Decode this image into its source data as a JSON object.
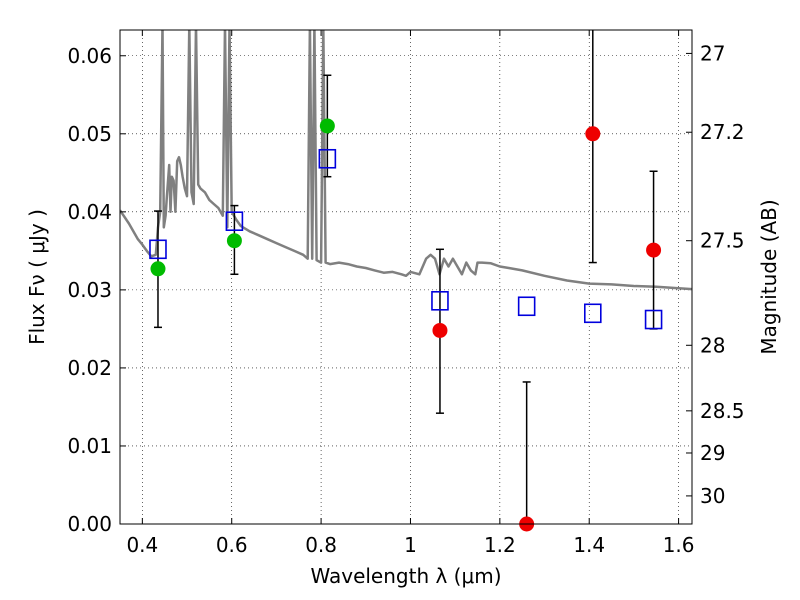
{
  "chart_data": {
    "type": "scatter",
    "title": "",
    "xlabel": "Wavelength  λ (μm)",
    "ylabel": "Flux  Fν  ( μJy )",
    "ylabel_right": "Magnitude (AB)",
    "xlim": [
      0.35,
      1.63
    ],
    "ylim": [
      0.0,
      0.0633
    ],
    "grid": true,
    "grid_style": "dotted",
    "x_ticks": [
      {
        "value": 0.4,
        "label": "0.4"
      },
      {
        "value": 0.6,
        "label": "0.6"
      },
      {
        "value": 0.8,
        "label": "0.8"
      },
      {
        "value": 1.0,
        "label": "1"
      },
      {
        "value": 1.2,
        "label": "1.2"
      },
      {
        "value": 1.4,
        "label": "1.4"
      },
      {
        "value": 1.6,
        "label": "1.6"
      }
    ],
    "y_ticks": [
      {
        "value": 0.0,
        "label": "0.00"
      },
      {
        "value": 0.01,
        "label": "0.01"
      },
      {
        "value": 0.02,
        "label": "0.02"
      },
      {
        "value": 0.03,
        "label": "0.03"
      },
      {
        "value": 0.04,
        "label": "0.04"
      },
      {
        "value": 0.05,
        "label": "0.05"
      },
      {
        "value": 0.06,
        "label": "0.06"
      }
    ],
    "right_ticks": [
      {
        "flux": 0.0603,
        "label": "27"
      },
      {
        "flux": 0.0502,
        "label": "27.2"
      },
      {
        "flux": 0.0363,
        "label": "27.5"
      },
      {
        "flux": 0.0229,
        "label": "28"
      },
      {
        "flux": 0.0145,
        "label": "28.5"
      },
      {
        "flux": 0.0091,
        "label": "29"
      },
      {
        "flux": 0.0036,
        "label": "30"
      }
    ],
    "model_spectrum": {
      "color": "#808080",
      "x": [
        0.35,
        0.37,
        0.39,
        0.4,
        0.41,
        0.42,
        0.43,
        0.435,
        0.44,
        0.445,
        0.448,
        0.452,
        0.455,
        0.46,
        0.463,
        0.466,
        0.47,
        0.474,
        0.478,
        0.482,
        0.486,
        0.49,
        0.495,
        0.5,
        0.505,
        0.51,
        0.515,
        0.52,
        0.525,
        0.53,
        0.54,
        0.55,
        0.56,
        0.57,
        0.58,
        0.585,
        0.59,
        0.595,
        0.6,
        0.61,
        0.62,
        0.64,
        0.66,
        0.68,
        0.7,
        0.72,
        0.74,
        0.76,
        0.77,
        0.775,
        0.78,
        0.785,
        0.79,
        0.8,
        0.805,
        0.81,
        0.82,
        0.84,
        0.86,
        0.88,
        0.9,
        0.92,
        0.94,
        0.96,
        0.98,
        0.99,
        1.0,
        1.02,
        1.035,
        1.045,
        1.055,
        1.065,
        1.075,
        1.085,
        1.095,
        1.105,
        1.115,
        1.125,
        1.135,
        1.145,
        1.15,
        1.16,
        1.18,
        1.2,
        1.22,
        1.25,
        1.3,
        1.35,
        1.4,
        1.45,
        1.5,
        1.55,
        1.6,
        1.63
      ],
      "y": [
        0.0402,
        0.0385,
        0.0365,
        0.0358,
        0.035,
        0.0343,
        0.0345,
        0.038,
        0.04,
        0.064,
        0.038,
        0.0395,
        0.042,
        0.046,
        0.04,
        0.0445,
        0.044,
        0.04,
        0.0465,
        0.047,
        0.046,
        0.0445,
        0.043,
        0.042,
        0.064,
        0.0425,
        0.041,
        0.064,
        0.0435,
        0.043,
        0.0425,
        0.0415,
        0.041,
        0.0405,
        0.0395,
        0.064,
        0.038,
        0.064,
        0.04,
        0.039,
        0.0382,
        0.0375,
        0.037,
        0.0365,
        0.036,
        0.0355,
        0.035,
        0.0345,
        0.034,
        0.064,
        0.034,
        0.064,
        0.0338,
        0.0335,
        0.064,
        0.0335,
        0.0333,
        0.0335,
        0.0333,
        0.033,
        0.0328,
        0.0325,
        0.0322,
        0.0323,
        0.032,
        0.0318,
        0.0323,
        0.032,
        0.034,
        0.0345,
        0.034,
        0.032,
        0.034,
        0.033,
        0.034,
        0.033,
        0.032,
        0.0335,
        0.0325,
        0.032,
        0.0335,
        0.0335,
        0.0334,
        0.033,
        0.0328,
        0.0325,
        0.0318,
        0.0312,
        0.0308,
        0.0307,
        0.0305,
        0.0304,
        0.0302,
        0.0301
      ]
    },
    "series": [
      {
        "marker": "circle-filled",
        "color": "#00bb00",
        "points": [
          {
            "x": 0.435,
            "y": 0.0327,
            "yerr_low": 0.0252,
            "yerr_high": 0.0401
          },
          {
            "x": 0.606,
            "y": 0.0363,
            "yerr_low": 0.032,
            "yerr_high": 0.0408
          },
          {
            "x": 0.814,
            "y": 0.051,
            "yerr_low": 0.0445,
            "yerr_high": 0.0575
          }
        ]
      },
      {
        "marker": "circle-filled",
        "color": "#ee0000",
        "points": [
          {
            "x": 1.066,
            "y": 0.0248,
            "yerr_low": 0.0142,
            "yerr_high": 0.0352
          },
          {
            "x": 1.26,
            "y": 0.0,
            "yerr_low": 0.0,
            "yerr_high": 0.0182
          },
          {
            "x": 1.408,
            "y": 0.05,
            "yerr_low": 0.0335,
            "yerr_high": 0.064
          },
          {
            "x": 1.544,
            "y": 0.0351,
            "yerr_low": 0.025,
            "yerr_high": 0.0452
          }
        ]
      },
      {
        "marker": "square-open",
        "color": "#0000dd",
        "points": [
          {
            "x": 0.435,
            "y": 0.0352
          },
          {
            "x": 0.606,
            "y": 0.0388
          },
          {
            "x": 0.814,
            "y": 0.0468
          },
          {
            "x": 1.066,
            "y": 0.0286
          },
          {
            "x": 1.26,
            "y": 0.0279
          },
          {
            "x": 1.408,
            "y": 0.027
          },
          {
            "x": 1.544,
            "y": 0.0262
          }
        ]
      }
    ]
  }
}
